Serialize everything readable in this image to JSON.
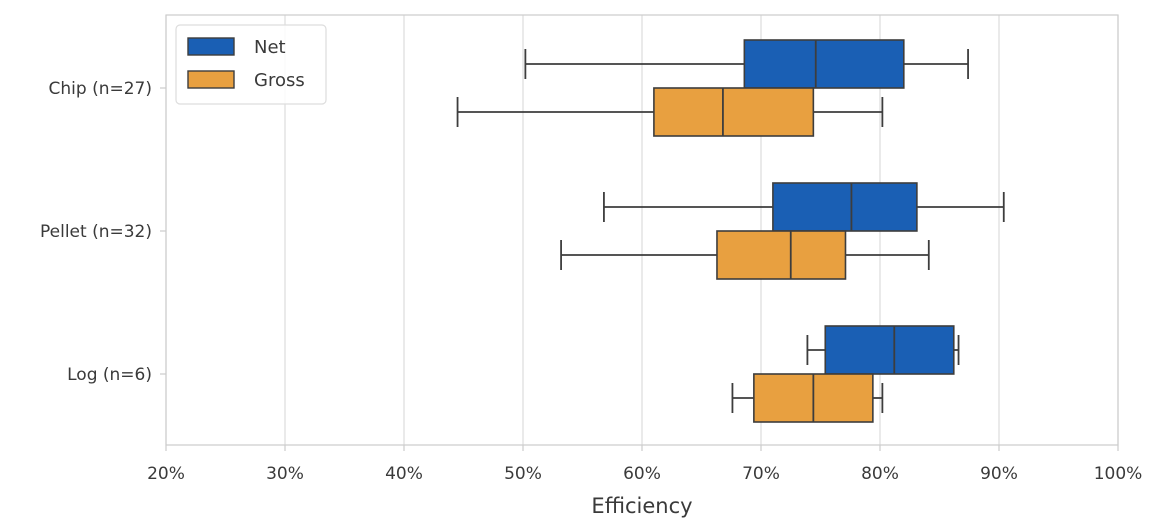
{
  "chart_data": {
    "type": "boxplot",
    "orientation": "horizontal",
    "title": "",
    "xlabel": "Efficiency",
    "ylabel": "",
    "xlim": [
      0.2,
      1.0
    ],
    "x_ticks": [
      0.2,
      0.3,
      0.4,
      0.5,
      0.6,
      0.7,
      0.8,
      0.9,
      1.0
    ],
    "x_tick_labels": [
      "20%",
      "30%",
      "40%",
      "50%",
      "60%",
      "70%",
      "80%",
      "90%",
      "100%"
    ],
    "grid": "vertical",
    "legend_position": "top-left",
    "categories": [
      "Chip (n=27)",
      "Pellet (n=32)",
      "Log (n=6)"
    ],
    "series": [
      {
        "name": "Net",
        "color": "#1a5fb4",
        "boxes": [
          {
            "category": "Chip (n=27)",
            "whisker_low": 0.502,
            "q1": 0.686,
            "median": 0.746,
            "q3": 0.82,
            "whisker_high": 0.874
          },
          {
            "category": "Pellet (n=32)",
            "whisker_low": 0.568,
            "q1": 0.71,
            "median": 0.776,
            "q3": 0.831,
            "whisker_high": 0.904
          },
          {
            "category": "Log (n=6)",
            "whisker_low": 0.739,
            "q1": 0.754,
            "median": 0.812,
            "q3": 0.862,
            "whisker_high": 0.866
          }
        ]
      },
      {
        "name": "Gross",
        "color": "#e8a040",
        "boxes": [
          {
            "category": "Chip (n=27)",
            "whisker_low": 0.445,
            "q1": 0.61,
            "median": 0.668,
            "q3": 0.744,
            "whisker_high": 0.802
          },
          {
            "category": "Pellet (n=32)",
            "whisker_low": 0.532,
            "q1": 0.663,
            "median": 0.725,
            "q3": 0.771,
            "whisker_high": 0.841
          },
          {
            "category": "Log (n=6)",
            "whisker_low": 0.676,
            "q1": 0.694,
            "median": 0.744,
            "q3": 0.794,
            "whisker_high": 0.802
          }
        ]
      }
    ]
  }
}
